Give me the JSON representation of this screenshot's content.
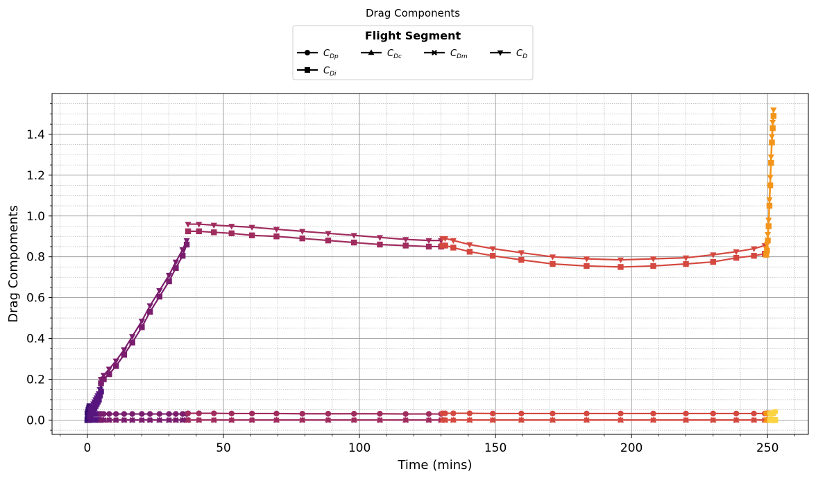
{
  "chart_data": {
    "type": "line",
    "title": "Drag Components",
    "xlabel": "Time (mins)",
    "ylabel": "Drag Compoments",
    "xlim": [
      -13,
      265
    ],
    "ylim": [
      -0.07,
      1.6
    ],
    "xticks": [
      0,
      50,
      100,
      150,
      200,
      250
    ],
    "yticks": [
      0.0,
      0.2,
      0.4,
      0.6,
      0.8,
      1.0,
      1.2,
      1.4
    ],
    "xtick_labels": [
      "0",
      "50",
      "100",
      "150",
      "200",
      "250"
    ],
    "ytick_labels": [
      "0.0",
      "0.2",
      "0.4",
      "0.6",
      "0.8",
      "1.0",
      "1.2",
      "1.4"
    ],
    "grid": true,
    "minor_grid": true,
    "legend": {
      "title": "Flight Segment",
      "placement": "top-center",
      "entries": [
        {
          "key": "CDp",
          "base": "C",
          "sub": "Dp",
          "marker": "circle"
        },
        {
          "key": "CDc",
          "base": "C",
          "sub": "Dc",
          "marker": "triangle-up"
        },
        {
          "key": "CDm",
          "base": "C",
          "sub": "Dm",
          "marker": "cross"
        },
        {
          "key": "CD",
          "base": "C",
          "sub": "D",
          "marker": "triangle-down"
        },
        {
          "key": "CDi",
          "base": "C",
          "sub": "Di",
          "marker": "square"
        }
      ]
    },
    "segments": [
      {
        "color": "#3b0f70",
        "x": [
          0,
          0.1,
          0.2,
          0.3,
          0.4,
          0.5,
          0.6,
          0.7,
          0.8,
          0.9,
          1.0
        ],
        "CDp": [
          0.03,
          0.03,
          0.03,
          0.03,
          0.03,
          0.03,
          0.03,
          0.03,
          0.03,
          0.03,
          0.03
        ],
        "CDi": [
          0.0,
          0.005,
          0.01,
          0.015,
          0.02,
          0.025,
          0.03,
          0.035,
          0.04,
          0.045,
          0.05
        ],
        "CDc": [
          0,
          0,
          0,
          0,
          0,
          0,
          0,
          0,
          0,
          0,
          0
        ],
        "CDm": [
          0,
          0,
          0,
          0,
          0,
          0,
          0,
          0,
          0,
          0,
          0
        ],
        "CD": [
          0.03,
          0.035,
          0.04,
          0.045,
          0.05,
          0.055,
          0.06,
          0.065,
          0.07,
          0.07,
          0.06
        ]
      },
      {
        "color": "#57157e",
        "x": [
          1.0,
          1.4,
          1.8,
          2.2,
          2.6,
          3.0,
          3.4,
          3.8,
          4.2,
          4.6,
          5.0
        ],
        "CDp": [
          0.03,
          0.03,
          0.03,
          0.03,
          0.03,
          0.03,
          0.03,
          0.03,
          0.03,
          0.03,
          0.03
        ],
        "CDi": [
          0.02,
          0.03,
          0.04,
          0.05,
          0.06,
          0.07,
          0.08,
          0.09,
          0.1,
          0.12,
          0.14
        ],
        "CDc": [
          0,
          0,
          0,
          0,
          0,
          0,
          0,
          0,
          0,
          0,
          0
        ],
        "CDm": [
          0,
          0,
          0,
          0,
          0,
          0,
          0,
          0,
          0,
          0,
          0
        ],
        "CD": [
          0.05,
          0.06,
          0.07,
          0.08,
          0.09,
          0.1,
          0.11,
          0.12,
          0.13,
          0.15,
          0.17
        ]
      },
      {
        "color": "#7a1d6d",
        "x": [
          5.0,
          6.0,
          8.0,
          10.5,
          13.5,
          16.5,
          20.0,
          23.0,
          26.5,
          30.0,
          32.5,
          35.0,
          36.5
        ],
        "CDp": [
          0.03,
          0.03,
          0.03,
          0.03,
          0.03,
          0.03,
          0.03,
          0.03,
          0.03,
          0.03,
          0.03,
          0.03,
          0.03
        ],
        "CDi": [
          0.18,
          0.2,
          0.225,
          0.265,
          0.32,
          0.38,
          0.455,
          0.53,
          0.605,
          0.68,
          0.745,
          0.805,
          0.86
        ],
        "CDc": [
          0,
          0,
          0,
          0,
          0,
          0,
          0,
          0,
          0,
          0,
          0,
          0,
          0
        ],
        "CDm": [
          0,
          0,
          0,
          0,
          0,
          0,
          0,
          0,
          0,
          0,
          0,
          0,
          0
        ],
        "CD": [
          0.2,
          0.22,
          0.25,
          0.29,
          0.345,
          0.41,
          0.485,
          0.56,
          0.635,
          0.71,
          0.775,
          0.835,
          0.88
        ]
      },
      {
        "color": "#a02c5e",
        "x": [
          37.0,
          41.0,
          46.5,
          53.0,
          60.5,
          69.5,
          79.0,
          88.5,
          98.0,
          107.5,
          117.0,
          125.5,
          130.0
        ],
        "CDp": [
          0.033,
          0.033,
          0.033,
          0.032,
          0.032,
          0.032,
          0.031,
          0.031,
          0.031,
          0.031,
          0.03,
          0.03,
          0.03
        ],
        "CDi": [
          0.925,
          0.925,
          0.92,
          0.915,
          0.905,
          0.9,
          0.89,
          0.88,
          0.87,
          0.86,
          0.855,
          0.85,
          0.85
        ],
        "CDc": [
          0,
          0,
          0,
          0,
          0,
          0,
          0,
          0,
          0,
          0,
          0,
          0,
          0
        ],
        "CDm": [
          0,
          0,
          0,
          0,
          0,
          0,
          0,
          0,
          0,
          0,
          0,
          0,
          0
        ],
        "CD": [
          0.96,
          0.96,
          0.955,
          0.95,
          0.945,
          0.935,
          0.925,
          0.915,
          0.905,
          0.895,
          0.885,
          0.88,
          0.88
        ]
      },
      {
        "color": "#d4483f",
        "x": [
          130.5,
          131.5,
          134.5,
          140.5,
          149.0,
          159.5,
          171.0,
          183.5,
          196.0,
          208.0,
          220.0,
          230.0,
          238.5,
          245.0,
          249.0
        ],
        "CDp": [
          0.033,
          0.033,
          0.033,
          0.033,
          0.032,
          0.032,
          0.032,
          0.032,
          0.032,
          0.032,
          0.032,
          0.032,
          0.032,
          0.032,
          0.032
        ],
        "CDi": [
          0.855,
          0.855,
          0.845,
          0.825,
          0.805,
          0.785,
          0.765,
          0.755,
          0.75,
          0.755,
          0.765,
          0.775,
          0.795,
          0.805,
          0.815
        ],
        "CDc": [
          0,
          0,
          0,
          0,
          0,
          0,
          0,
          0,
          0,
          0,
          0,
          0,
          0,
          0,
          0
        ],
        "CDm": [
          0,
          0,
          0,
          0,
          0,
          0,
          0,
          0,
          0,
          0,
          0,
          0,
          0,
          0,
          0
        ],
        "CD": [
          0.89,
          0.89,
          0.88,
          0.86,
          0.84,
          0.82,
          0.8,
          0.79,
          0.785,
          0.79,
          0.795,
          0.81,
          0.825,
          0.84,
          0.855
        ]
      },
      {
        "color": "#f3951a",
        "x": [
          249.5,
          249.8,
          250.1,
          250.4,
          250.7,
          251.0,
          251.3,
          251.6,
          251.9,
          252.2
        ],
        "CDp": [
          0.033,
          0.033,
          0.033,
          0.033,
          0.033,
          0.033,
          0.033,
          0.033,
          0.033,
          0.033
        ],
        "CDi": [
          0.81,
          0.83,
          0.88,
          0.95,
          1.05,
          1.15,
          1.26,
          1.36,
          1.43,
          1.49
        ],
        "CDc": [
          0,
          0,
          0,
          0,
          0,
          0,
          0,
          0,
          0,
          0
        ],
        "CDm": [
          0,
          0,
          0,
          0,
          0,
          0,
          0,
          0,
          0,
          0
        ],
        "CD": [
          0.84,
          0.86,
          0.91,
          0.98,
          1.08,
          1.19,
          1.29,
          1.39,
          1.46,
          1.52
        ]
      },
      {
        "color": "#fad442",
        "x": [
          251.0,
          251.3,
          251.6,
          251.9,
          252.2,
          252.5,
          252.8
        ],
        "CDp": [
          0.03,
          0.031,
          0.032,
          0.034,
          0.036,
          0.038,
          0.04
        ],
        "CDi": [
          0.0,
          0.0,
          0.0,
          0.0,
          0.0,
          0.0,
          0.0
        ],
        "CDc": [
          0,
          0,
          0,
          0,
          0,
          0,
          0
        ],
        "CDm": [
          0,
          0,
          0,
          0,
          0,
          0,
          0
        ],
        "CD": [
          0.03,
          0.031,
          0.032,
          0.034,
          0.036,
          0.038,
          0.04
        ]
      }
    ]
  }
}
